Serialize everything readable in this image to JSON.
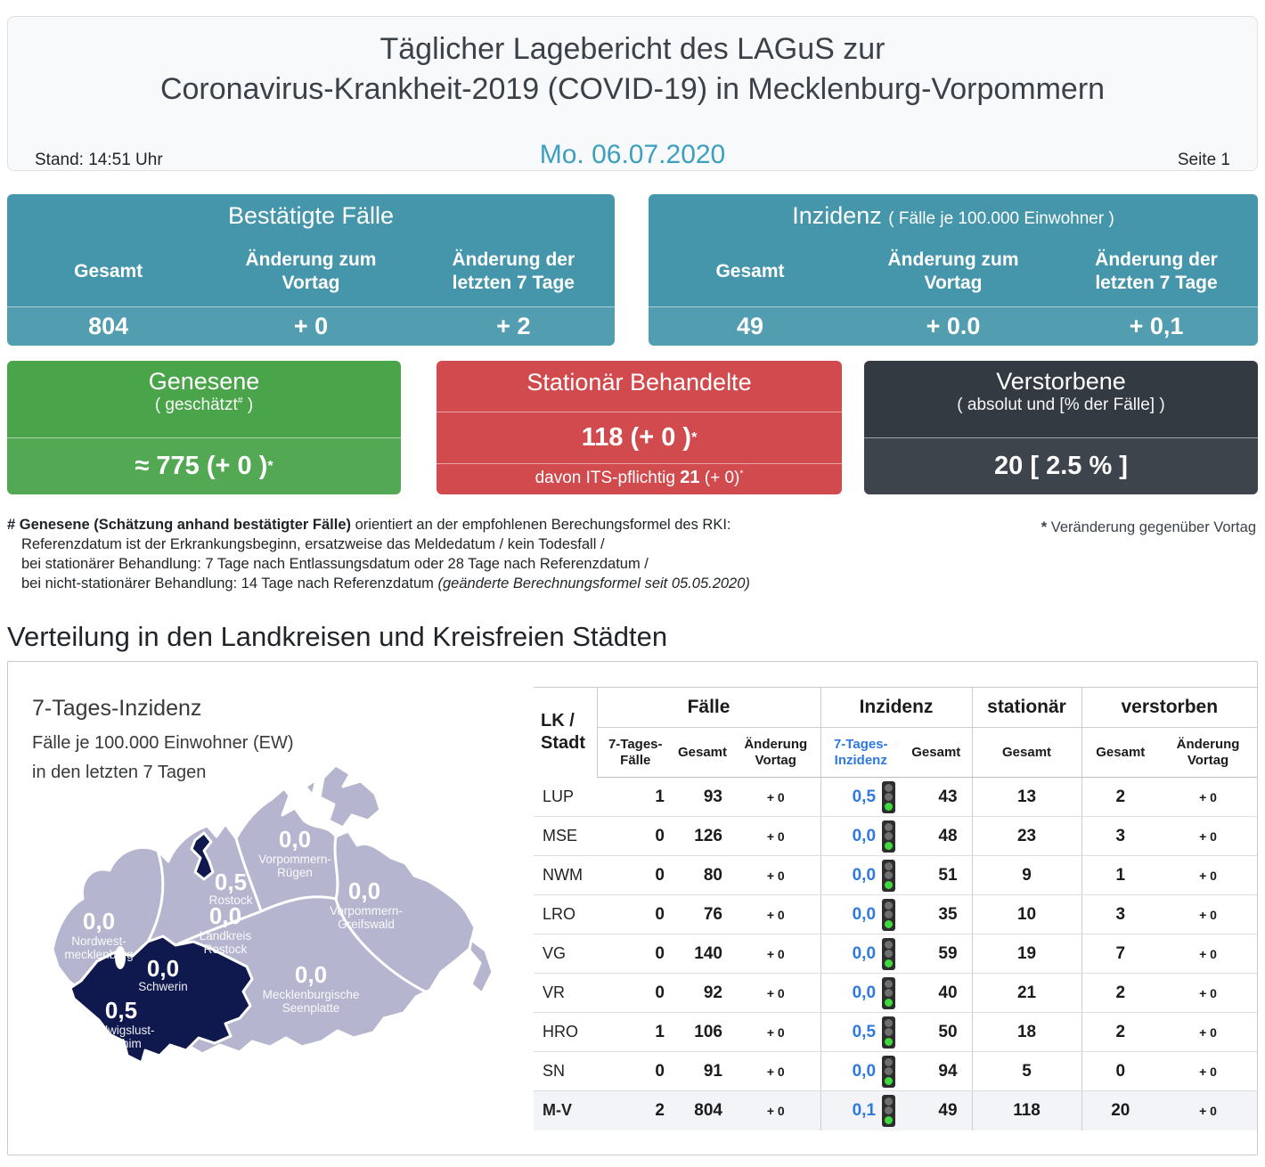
{
  "header": {
    "title_line1": "Täglicher Lagebericht des LAGuS zur",
    "title_line2": "Coronavirus-Krankheit-2019 (COVID-19) in Mecklenburg-Vorpommern",
    "stand": "Stand: 14:51 Uhr",
    "date": "Mo. 06.07.2020",
    "page": "Seite 1"
  },
  "cards": {
    "confirmed": {
      "title": "Bestätigte Fälle",
      "col1": "Gesamt",
      "col2": "Änderung zum\nVortag",
      "col3": "Änderung der\nletzten 7 Tage",
      "val1": "804",
      "val2": "+ 0",
      "val3": "+ 2"
    },
    "incidence": {
      "title": "Inzidenz",
      "title_note": "( Fälle je 100.000 Einwohner )",
      "col1": "Gesamt",
      "col2": "Änderung zum\nVortag",
      "col3": "Änderung der\nletzten 7 Tage",
      "val1": "49",
      "val2": "+ 0.0",
      "val3": "+ 0,1"
    },
    "recovered": {
      "title": "Genesene",
      "sub_pre": "( geschätzt",
      "sub_sup": "#",
      "sub_post": " )",
      "value": "≈ 775 (+ 0 )",
      "value_sup": "*"
    },
    "hospitalized": {
      "title": "Stationär Behandelte",
      "value": "118 (+ 0 )",
      "value_sup": "*",
      "its_pre": "davon ITS-pflichtig ",
      "its_value": "21",
      "its_rest": " (+ 0)",
      "its_sup": "*"
    },
    "deceased": {
      "title": "Verstorbene",
      "sub": "( absolut und [% der Fälle] )",
      "value": "20 [ 2.5 % ]"
    }
  },
  "footnotes": {
    "hash_mark": "#",
    "line1_bold": "Genesene (Schätzung anhand bestätigter Fälle)",
    "line1_rest": " orientiert an der empfohlenen Berechungsformel des RKI:",
    "line2": "Referenzdatum ist der Erkrankungsbeginn, ersatzweise das Meldedatum / kein Todesfall /",
    "line3": "bei stationärer Behandlung: 7 Tage nach Entlassungsdatum oder 28 Tage nach Referenzdatum /",
    "line4": "bei nicht-stationärer Behandlung: 14 Tage nach Referenzdatum",
    "line4_italic": "(geänderte Berechnungsformel seit 05.05.2020)",
    "star_mark": "*",
    "star_text": "Veränderung gegenüber Vortag"
  },
  "section_title": "Verteilung in den Landkreisen und Kreisfreien Städten",
  "map": {
    "title": "7-Tages-Inzidenz",
    "subtitle1": "Fälle je 100.000 Einwohner (EW)",
    "subtitle2": "in den letzten 7 Tagen",
    "regions": [
      {
        "key": "NWM",
        "value": "0,0",
        "name1": "Nordwest-",
        "name2": "mecklenburg"
      },
      {
        "key": "HRO",
        "value": "0,5",
        "name1": "Rostock",
        "name2": ""
      },
      {
        "key": "VR",
        "value": "0,0",
        "name1": "Vorpommern-",
        "name2": "Rügen"
      },
      {
        "key": "LRO",
        "value": "0,0",
        "name1": "Landkreis",
        "name2": "Rostock"
      },
      {
        "key": "VG",
        "value": "0,0",
        "name1": "Vorpommern-",
        "name2": "Greifswald"
      },
      {
        "key": "SN",
        "value": "0,0",
        "name1": "Schwerin",
        "name2": ""
      },
      {
        "key": "LUP",
        "value": "0,5",
        "name1": "Ludwigslust-",
        "name2": "Parchim"
      },
      {
        "key": "MSE",
        "value": "0,0",
        "name1": "Mecklenburgische",
        "name2": "Seenplatte"
      }
    ]
  },
  "table": {
    "corner_line1": "LK /",
    "corner_line2": "Stadt",
    "groups": [
      "Fälle",
      "Inzidenz",
      "stationär",
      "verstorben"
    ],
    "sub": {
      "cases_week": "7-Tages-\nFälle",
      "cases_total": "Gesamt",
      "cases_delta": "Änderung\nVortag",
      "inc_week": "7-Tages-\nInzidenz",
      "inc_total": "Gesamt",
      "hosp_total": "Gesamt",
      "dead_total": "Gesamt",
      "dead_delta": "Änderung\nVortag"
    },
    "rows": [
      {
        "code": "LUP",
        "cases7": "1",
        "cases": "93",
        "casesDelta": "+ 0",
        "inc7": "0,5",
        "inc": "43",
        "hosp": "13",
        "dead": "2",
        "deadDelta": "+ 0",
        "total": false
      },
      {
        "code": "MSE",
        "cases7": "0",
        "cases": "126",
        "casesDelta": "+ 0",
        "inc7": "0,0",
        "inc": "48",
        "hosp": "23",
        "dead": "3",
        "deadDelta": "+ 0",
        "total": false
      },
      {
        "code": "NWM",
        "cases7": "0",
        "cases": "80",
        "casesDelta": "+ 0",
        "inc7": "0,0",
        "inc": "51",
        "hosp": "9",
        "dead": "1",
        "deadDelta": "+ 0",
        "total": false
      },
      {
        "code": "LRO",
        "cases7": "0",
        "cases": "76",
        "casesDelta": "+ 0",
        "inc7": "0,0",
        "inc": "35",
        "hosp": "10",
        "dead": "3",
        "deadDelta": "+ 0",
        "total": false
      },
      {
        "code": "VG",
        "cases7": "0",
        "cases": "140",
        "casesDelta": "+ 0",
        "inc7": "0,0",
        "inc": "59",
        "hosp": "19",
        "dead": "7",
        "deadDelta": "+ 0",
        "total": false
      },
      {
        "code": "VR",
        "cases7": "0",
        "cases": "92",
        "casesDelta": "+ 0",
        "inc7": "0,0",
        "inc": "40",
        "hosp": "21",
        "dead": "2",
        "deadDelta": "+ 0",
        "total": false
      },
      {
        "code": "HRO",
        "cases7": "1",
        "cases": "106",
        "casesDelta": "+ 0",
        "inc7": "0,5",
        "inc": "50",
        "hosp": "18",
        "dead": "2",
        "deadDelta": "+ 0",
        "total": false
      },
      {
        "code": "SN",
        "cases7": "0",
        "cases": "91",
        "casesDelta": "+ 0",
        "inc7": "0,0",
        "inc": "94",
        "hosp": "5",
        "dead": "0",
        "deadDelta": "+ 0",
        "total": false
      },
      {
        "code": "M-V",
        "cases7": "2",
        "cases": "804",
        "casesDelta": "+ 0",
        "inc7": "0,1",
        "inc": "49",
        "hosp": "118",
        "dead": "20",
        "deadDelta": "+ 0",
        "total": true
      }
    ]
  },
  "colors": {
    "teal_card": "#4596aa",
    "green_card": "#4aa44a",
    "red_card": "#d14b4e",
    "dark_card": "#343a42",
    "date_accent": "#3d9fc0",
    "map_light": "#b5b5cf",
    "map_dark": "#10194d",
    "incidence_blue": "#2e79e0",
    "traffic_green": "#3fd93f",
    "total_row_bg": "#f3f4f8"
  }
}
